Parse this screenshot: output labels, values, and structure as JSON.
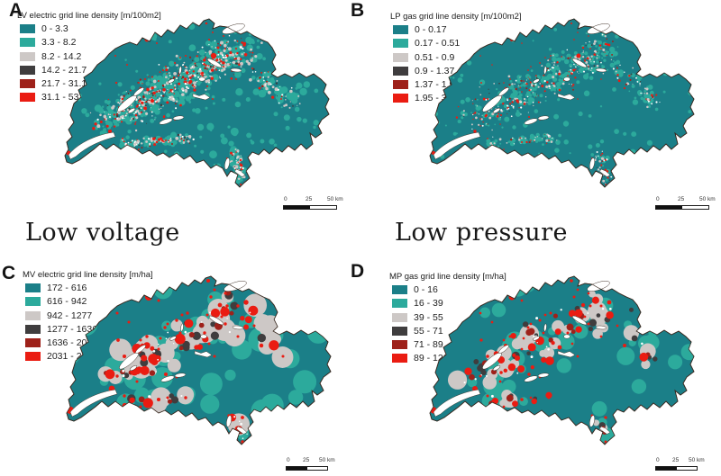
{
  "figure": {
    "background": "#ffffff",
    "border_color": "#3a2b22",
    "water_color": "#ffffff",
    "panels": [
      {
        "letter": "A",
        "legend_title": "LV electric grid line density [m/100m2]",
        "classes": [
          {
            "label": "0 - 3.3",
            "color": "#1b7f88"
          },
          {
            "label": "3.3 - 8.2",
            "color": "#2caa9c"
          },
          {
            "label": "8.2 - 14.2",
            "color": "#cdc8c6"
          },
          {
            "label": "14.2 - 21.7",
            "color": "#3f3d3e"
          },
          {
            "label": "21.7 - 31.1",
            "color": "#9e211a"
          },
          {
            "label": "31.1 - 53.7",
            "color": "#ea1c12"
          }
        ],
        "scalebar": {
          "ticks": [
            "0",
            "25",
            "50 km"
          ]
        }
      },
      {
        "letter": "B",
        "legend_title": "LP gas grid line density [m/100m2]",
        "classes": [
          {
            "label": "0 - 0.17",
            "color": "#1b7f88"
          },
          {
            "label": "0.17 - 0.51",
            "color": "#2caa9c"
          },
          {
            "label": "0.51 - 0.9",
            "color": "#cdc8c6"
          },
          {
            "label": "0.9 - 1.37",
            "color": "#3f3d3e"
          },
          {
            "label": "1.37 - 1.95",
            "color": "#9e211a"
          },
          {
            "label": "1.95 - 3.21",
            "color": "#ea1c12"
          }
        ],
        "scalebar": {
          "ticks": [
            "0",
            "25",
            "50 km"
          ]
        }
      },
      {
        "letter": "C",
        "legend_title": "MV electric grid line density [m/ha]",
        "classes": [
          {
            "label": "172 - 616",
            "color": "#1b7f88"
          },
          {
            "label": "616 - 942",
            "color": "#2caa9c"
          },
          {
            "label": "942 - 1277",
            "color": "#cdc8c6"
          },
          {
            "label": "1277 - 1636",
            "color": "#3f3d3e"
          },
          {
            "label": "1636 - 2031",
            "color": "#9e211a"
          },
          {
            "label": "2031 - 2762",
            "color": "#ea1c12"
          }
        ],
        "scalebar": {
          "ticks": [
            "0",
            "25",
            "50 km"
          ]
        }
      },
      {
        "letter": "D",
        "legend_title": "MP gas grid line density [m/ha]",
        "classes": [
          {
            "label": "0 - 16",
            "color": "#1b7f88"
          },
          {
            "label": "16 - 39",
            "color": "#2caa9c"
          },
          {
            "label": "39 - 55",
            "color": "#cdc8c6"
          },
          {
            "label": "55 - 71",
            "color": "#3f3d3e"
          },
          {
            "label": "71 - 89",
            "color": "#9e211a"
          },
          {
            "label": "89 - 122",
            "color": "#ea1c12"
          }
        ],
        "scalebar": {
          "ticks": [
            "0",
            "25",
            "50 km"
          ]
        }
      }
    ],
    "captions": [
      {
        "text": "Low voltage"
      },
      {
        "text": "Low pressure"
      }
    ]
  }
}
